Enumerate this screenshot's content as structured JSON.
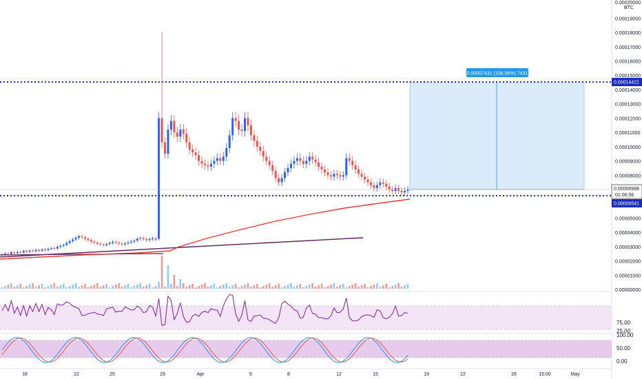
{
  "chart_data": {
    "type": "candlestick",
    "currency": "BTC",
    "y_ticks": [
      "0.00019000",
      "0.00018000",
      "0.00017000",
      "0.00016000",
      "0.00015000",
      "0.00014000",
      "0.00013000",
      "0.00012000",
      "0.00011000",
      "0.00010000",
      "0.00009000",
      "0.00008000",
      "0.00007000",
      "0.00006000",
      "0.00005000",
      "0.00004000",
      "0.00003000",
      "0.00002000",
      "0.00001000",
      "0.00000000"
    ],
    "y_top_label": "0.00020000",
    "ylim": [
      0,
      0.000195
    ],
    "x_labels": [
      "18",
      "22",
      "25",
      "29",
      "Apr",
      "5",
      "8",
      "12",
      "15",
      "19",
      "22",
      "26",
      "15:00",
      "May"
    ],
    "price_close": [
      2.45e-05,
      2.52e-05,
      2.48e-05,
      2.6e-05,
      2.55e-05,
      2.62e-05,
      2.58e-05,
      2.7e-05,
      2.64e-05,
      2.72e-05,
      2.68e-05,
      2.76e-05,
      2.71e-05,
      2.8e-05,
      2.75e-05,
      2.84e-05,
      2.9e-05,
      2.86e-05,
      2.98e-05,
      3.05e-05,
      3.12e-05,
      3.25e-05,
      3.38e-05,
      3.5e-05,
      3.62e-05,
      3.72e-05,
      3.65e-05,
      3.55e-05,
      3.45e-05,
      3.35e-05,
      3.28e-05,
      3.2e-05,
      3.15e-05,
      3.1e-05,
      3.18e-05,
      3.26e-05,
      3.33e-05,
      3.27e-05,
      3.21e-05,
      3.16e-05,
      3.22e-05,
      3.29e-05,
      3.35e-05,
      3.42e-05,
      3.55e-05,
      3.6e-05,
      3.52e-05,
      3.45e-05,
      3.52e-05,
      3.58e-05,
      3.49e-05,
      0.00012,
      0.000103,
      9.5e-05,
      0.000112,
      0.000118,
      0.00011,
      0.000107,
      0.000112,
      0.000109,
      0.000103,
      9.8e-05,
      9.6e-05,
      9.4e-05,
      9e-05,
      8.8e-05,
      8.7e-05,
      8.6e-05,
      8.8e-05,
      9e-05,
      9.2e-05,
      9e-05,
      9.3e-05,
      9.9e-05,
      0.000108,
      0.00012,
      0.000118,
      0.000112,
      0.000111,
      0.00012,
      0.000115,
      0.000108,
      0.000104,
      0.0001,
      9.7e-05,
      9.3e-05,
      9e-05,
      8.7e-05,
      8.3e-05,
      7.8e-05,
      7.5e-05,
      7.8e-05,
      8.2e-05,
      8.5e-05,
      8.8e-05,
      9e-05,
      9.2e-05,
      9e-05,
      8.8e-05,
      9e-05,
      9.3e-05,
      9.1e-05,
      8.9e-05,
      8.6e-05,
      8.4e-05,
      8.2e-05,
      8e-05,
      7.9e-05,
      8.1e-05,
      8e-05,
      7.9e-05,
      8e-05,
      9.2e-05,
      9e-05,
      8.7e-05,
      8.4e-05,
      8.1e-05,
      7.9e-05,
      7.7e-05,
      7.5e-05,
      7.3e-05,
      7.1e-05,
      7.3e-05,
      7.5e-05,
      7.4e-05,
      7.2e-05,
      7e-05,
      6.9e-05,
      7.1e-05,
      6.9e-05,
      6.8e-05,
      6.9e-05,
      7e-05
    ],
    "volume_spike_index": 51,
    "price_spike_high": 0.00018,
    "overlays": {
      "red_line": "moving-average",
      "purple_line": "trend-line",
      "dotted_high": 0.00014421,
      "dotted_low": 6.541e-05,
      "current_price": 6.988e-05
    },
    "rsi_labels": [
      "75.00",
      "25.00"
    ],
    "stoch_labels": [
      "100.00",
      "50.00",
      "0.00"
    ],
    "measure_label": "0.00007431 (106.98%) 7431",
    "labels": {
      "high": "0.00014421",
      "current": "0.00006988",
      "countdown": "01:06:56",
      "low": "0.00006541"
    },
    "colors": {
      "up": "#2962ff",
      "down": "#ef5350",
      "ma": "#e53935",
      "trend": "#5c2159",
      "dotted": "#1c2bbf",
      "measure_fill": "#d6e8f8",
      "measure_line": "#42a5f5",
      "rsi_line": "#7b1fa2",
      "rsi_band": "#f3e5f5",
      "stoch_k": "#2196f3",
      "stoch_d": "#ef5350",
      "stoch_band": "#e1bee7"
    }
  }
}
